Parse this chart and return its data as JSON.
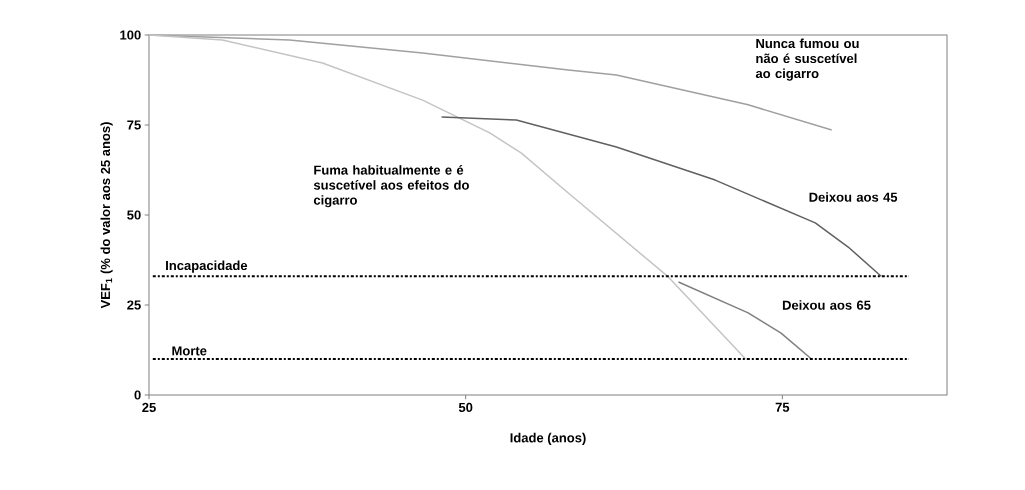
{
  "chart_data": {
    "type": "line",
    "xlabel": "Idade (anos)",
    "ylabel": "VEF$_{1}$ (% do valor aos 25 anos)",
    "xlim": [
      25,
      88
    ],
    "ylim": [
      0,
      100
    ],
    "xticks": [
      25,
      50,
      75
    ],
    "yticks": [
      0,
      25,
      50,
      75,
      100
    ],
    "grid": false,
    "line_style": "solid",
    "series": [
      {
        "name": "Nunca fumou ou não é suscetível ao cigarro",
        "color": "#a0a0a0",
        "x": [
          25,
          36.1,
          46.6,
          58.1,
          61.9,
          72.3,
          78.9
        ],
        "values": [
          100,
          98.6,
          95,
          90.3,
          88.9,
          80.6,
          73.6
        ]
      },
      {
        "name": "Fuma habitualmente e é suscetível aos efeitos do cigarro",
        "color": "#c4c4c4",
        "x": [
          25,
          30.8,
          38.7,
          46.6,
          51.9,
          54.4,
          58.1,
          66.0,
          72.1
        ],
        "values": [
          100,
          98.6,
          92.2,
          81.9,
          72.8,
          67.2,
          56.1,
          32.8,
          10
        ]
      },
      {
        "name": "Deixou aos 45",
        "color": "#606060",
        "x": [
          48.1,
          54.0,
          61.9,
          69.7,
          77.6,
          80.2,
          82.8
        ],
        "values": [
          77.2,
          76.4,
          68.9,
          59.7,
          47.8,
          41.1,
          33
        ]
      },
      {
        "name": "Deixou aos 65",
        "color": "#808080",
        "x": [
          66.8,
          72.3,
          74.9,
          77.3
        ],
        "values": [
          31.4,
          22.8,
          17.2,
          10
        ]
      }
    ],
    "ref_lines": [
      {
        "axis": "y",
        "value": 33,
        "label": "Incapacidade",
        "color": "#000000",
        "line_style": "dashdot"
      },
      {
        "axis": "y",
        "value": 10,
        "label": "Morte",
        "color": "#000000",
        "line_style": "dashdot"
      }
    ]
  }
}
